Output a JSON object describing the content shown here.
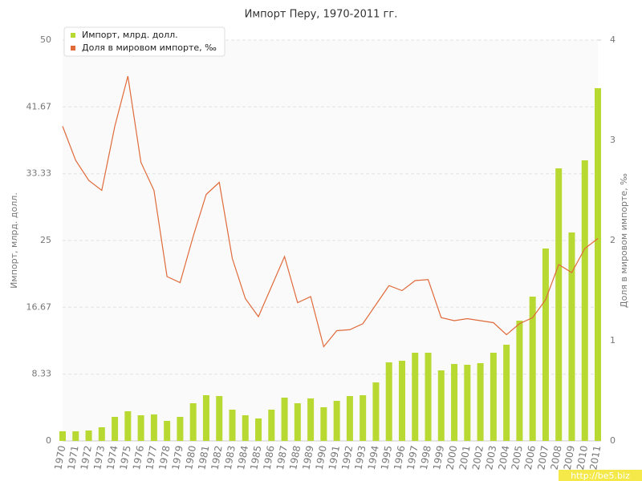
{
  "chart_data": {
    "type": "bar-line",
    "title": "Импорт Перу, 1970-2011 гг.",
    "y_label": "Импорт, млрд. долл.",
    "y2_label": "Доля в мировом импорте, ‰",
    "watermark": "http://be5.biz",
    "categories": [
      "1970",
      "1971",
      "1972",
      "1973",
      "1974",
      "1975",
      "1976",
      "1977",
      "1978",
      "1979",
      "1980",
      "1981",
      "1982",
      "1983",
      "1984",
      "1985",
      "1986",
      "1987",
      "1988",
      "1989",
      "1990",
      "1991",
      "1992",
      "1993",
      "1994",
      "1995",
      "1996",
      "1997",
      "1998",
      "1999",
      "2000",
      "2001",
      "2002",
      "2003",
      "2004",
      "2005",
      "2006",
      "2007",
      "2008",
      "2009",
      "2010",
      "2011"
    ],
    "series": [
      {
        "name": "Импорт, млрд. долл.",
        "type": "bar",
        "color": "#b8d832",
        "values": [
          1.2,
          1.2,
          1.3,
          1.7,
          3.0,
          3.7,
          3.2,
          3.3,
          2.5,
          3.0,
          4.7,
          5.7,
          5.6,
          3.9,
          3.2,
          2.8,
          3.9,
          5.4,
          4.7,
          5.3,
          4.2,
          5.0,
          5.6,
          5.7,
          7.3,
          9.8,
          10.0,
          11.0,
          11.0,
          8.8,
          9.6,
          9.5,
          9.7,
          11.0,
          12.0,
          15.0,
          18.0,
          24.0,
          34.0,
          26.0,
          35.0,
          44.0
        ]
      },
      {
        "name": "Доля в мировом импорте, ‰",
        "type": "line",
        "axis": "y2",
        "color": "#e06a3a",
        "values": [
          3.14,
          2.8,
          2.6,
          2.5,
          3.14,
          3.64,
          2.78,
          2.5,
          1.64,
          1.58,
          2.04,
          2.46,
          2.58,
          1.82,
          1.42,
          1.24,
          1.54,
          1.84,
          1.38,
          1.44,
          0.94,
          1.1,
          1.11,
          1.17,
          1.36,
          1.55,
          1.5,
          1.6,
          1.61,
          1.23,
          1.2,
          1.22,
          1.2,
          1.18,
          1.06,
          1.17,
          1.23,
          1.41,
          1.76,
          1.68,
          1.92,
          2.02
        ]
      }
    ],
    "ylim": [
      0,
      50
    ],
    "yticks": [
      0,
      8.33,
      16.67,
      25,
      33.33,
      41.67,
      50
    ],
    "y2lim": [
      0,
      4
    ],
    "y2ticks": [
      0,
      1,
      2,
      3,
      4
    ],
    "grid": true,
    "legend": "top-left"
  }
}
